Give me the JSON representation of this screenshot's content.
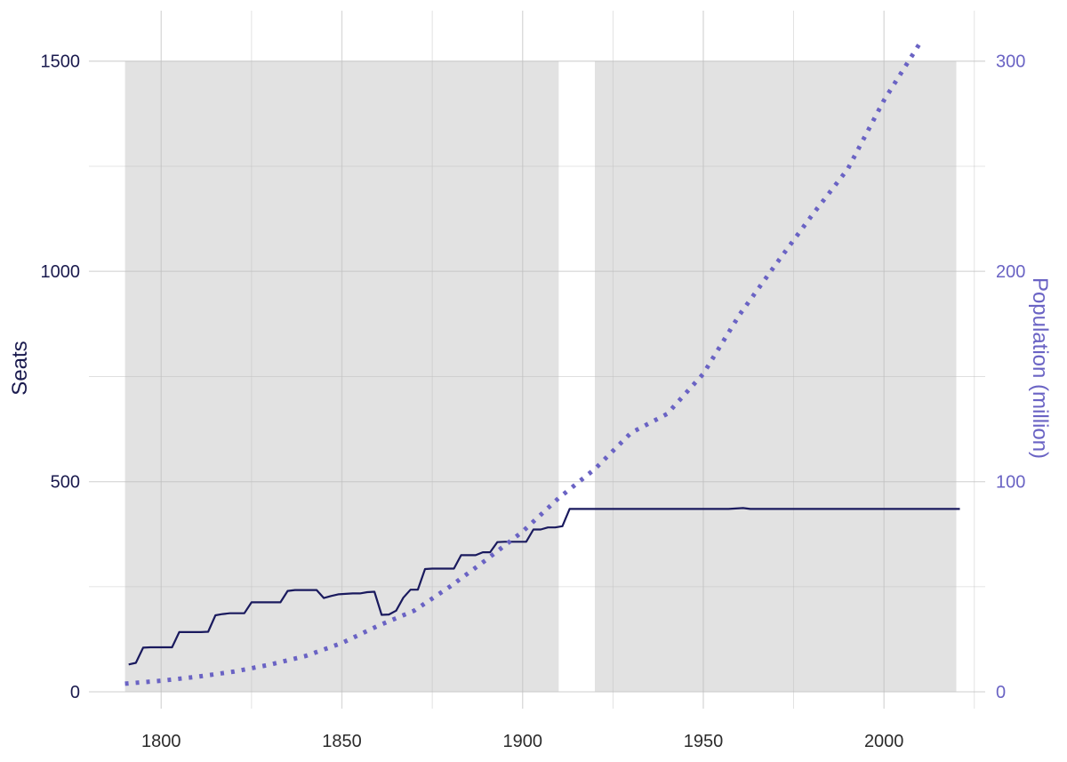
{
  "chart_data": {
    "type": "line",
    "title": "",
    "xlabel": "",
    "ylabel": "Seats",
    "y2label": "Population (million)",
    "xlim": [
      1780,
      2028
    ],
    "ylim": [
      -40,
      1620
    ],
    "y2lim": [
      -8,
      324
    ],
    "grid": true,
    "x_ticks": [
      1800,
      1850,
      1900,
      1950,
      2000
    ],
    "y_ticks": [
      0,
      500,
      1000,
      1500
    ],
    "y2_ticks": [
      0,
      100,
      200,
      300
    ],
    "colors": {
      "seats": "#1a1a5e",
      "population": "#6a63c4",
      "shade": "#e2e2e2"
    },
    "shaded_periods": [
      {
        "start": 1790,
        "end": 1910
      },
      {
        "start": 1920,
        "end": 2020
      }
    ],
    "series": [
      {
        "key": "seats",
        "axis": "left",
        "style": "solid",
        "x": [
          1791,
          1793,
          1795,
          1797,
          1799,
          1801,
          1803,
          1805,
          1807,
          1809,
          1811,
          1813,
          1815,
          1817,
          1819,
          1821,
          1823,
          1825,
          1827,
          1829,
          1831,
          1833,
          1835,
          1837,
          1839,
          1841,
          1843,
          1845,
          1847,
          1849,
          1851,
          1853,
          1855,
          1857,
          1859,
          1861,
          1863,
          1865,
          1867,
          1869,
          1871,
          1873,
          1875,
          1877,
          1879,
          1881,
          1883,
          1885,
          1887,
          1889,
          1891,
          1893,
          1895,
          1897,
          1899,
          1901,
          1903,
          1905,
          1907,
          1909,
          1911,
          1913,
          1915,
          1917,
          1919,
          1921,
          1923,
          1925,
          1927,
          1929,
          1931,
          1933,
          1935,
          1937,
          1939,
          1941,
          1943,
          1945,
          1947,
          1949,
          1951,
          1953,
          1955,
          1957,
          1959,
          1961,
          1963,
          1965,
          1967,
          1969,
          1971,
          1973,
          1975,
          1977,
          1979,
          1981,
          1983,
          1985,
          1987,
          1989,
          1991,
          1993,
          1995,
          1997,
          1999,
          2001,
          2003,
          2005,
          2007,
          2009,
          2011,
          2013,
          2015,
          2017,
          2019,
          2021
        ],
        "values": [
          65,
          69,
          105,
          106,
          106,
          106,
          106,
          142,
          142,
          142,
          142,
          143,
          182,
          185,
          187,
          187,
          187,
          213,
          213,
          213,
          213,
          213,
          240,
          242,
          242,
          242,
          242,
          223,
          228,
          232,
          233,
          234,
          234,
          237,
          238,
          183,
          184,
          193,
          224,
          243,
          243,
          292,
          293,
          293,
          293,
          293,
          325,
          325,
          325,
          332,
          332,
          356,
          357,
          357,
          357,
          357,
          386,
          386,
          391,
          391,
          394,
          435,
          435,
          435,
          435,
          435,
          435,
          435,
          435,
          435,
          435,
          435,
          435,
          435,
          435,
          435,
          435,
          435,
          435,
          435,
          435,
          435,
          435,
          435,
          436,
          437,
          435,
          435,
          435,
          435,
          435,
          435,
          435,
          435,
          435,
          435,
          435,
          435,
          435,
          435,
          435,
          435,
          435,
          435,
          435,
          435,
          435,
          435,
          435,
          435,
          435,
          435,
          435,
          435,
          435,
          435
        ]
      },
      {
        "key": "population",
        "axis": "right",
        "style": "dotted",
        "x": [
          1790,
          1800,
          1810,
          1820,
          1830,
          1840,
          1850,
          1860,
          1870,
          1880,
          1890,
          1900,
          1910,
          1920,
          1930,
          1940,
          1950,
          1960,
          1970,
          1980,
          1990,
          2000,
          2010
        ],
        "values": [
          3.9,
          5.3,
          7.2,
          9.6,
          12.9,
          17.1,
          23.2,
          31.4,
          38.6,
          50.2,
          62.9,
          76.2,
          92.2,
          106.0,
          123.2,
          132.2,
          151.3,
          179.3,
          203.2,
          226.5,
          248.7,
          281.4,
          308.7
        ]
      }
    ]
  }
}
